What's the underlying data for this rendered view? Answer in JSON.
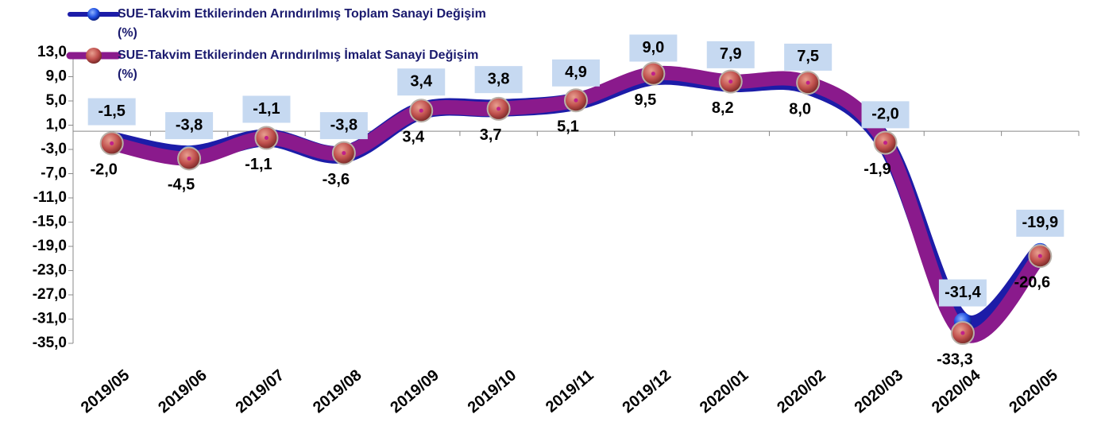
{
  "chart_data": {
    "type": "line",
    "categories": [
      "2019/05",
      "2019/06",
      "2019/07",
      "2019/08",
      "2019/09",
      "2019/10",
      "2019/11",
      "2019/12",
      "2020/01",
      "2020/02",
      "2020/03",
      "2020/04",
      "2020/05"
    ],
    "series": [
      {
        "name": "SUE-Takvim Etkilerinden Arındırılmış Toplam Sanayi Değişim (%)",
        "color": "#1c1ca8",
        "values": [
          -1.5,
          -3.8,
          -1.1,
          -3.8,
          3.4,
          3.8,
          4.9,
          9.0,
          7.9,
          7.5,
          -2.0,
          -31.4,
          -19.9
        ],
        "value_labels": [
          "-1,5",
          "-3,8",
          "-1,1",
          "-3,8",
          "3,4",
          "3,8",
          "4,9",
          "9,0",
          "7,9",
          "7,5",
          "-2,0",
          "-31,4",
          "-19,9"
        ]
      },
      {
        "name": "SUE-Takvim Etkilerinden Arındırılmış İmalat Sanayi Değişim (%)",
        "color": "#8a1a8c",
        "values": [
          -2.0,
          -4.5,
          -1.1,
          -3.6,
          3.4,
          3.7,
          5.1,
          9.5,
          8.2,
          8.0,
          -1.9,
          -33.3,
          -20.6
        ],
        "value_labels": [
          "-2,0",
          "-4,5",
          "-1,1",
          "-3,6",
          "3,4",
          "3,7",
          "5,1",
          "9,5",
          "8,2",
          "8,0",
          "-1,9",
          "-33,3",
          "-20,6"
        ]
      }
    ],
    "ylim": [
      -35,
      13
    ],
    "yticks": [
      {
        "value": 13,
        "label": "13,0"
      },
      {
        "value": 9,
        "label": "9,0"
      },
      {
        "value": 5,
        "label": "5,0"
      },
      {
        "value": 1,
        "label": "1,0"
      },
      {
        "value": -3,
        "label": "-3,0"
      },
      {
        "value": -7,
        "label": "-7,0"
      },
      {
        "value": -11,
        "label": "-11,0"
      },
      {
        "value": -15,
        "label": "-15,0"
      },
      {
        "value": -19,
        "label": "-19,0"
      },
      {
        "value": -23,
        "label": "-23,0"
      },
      {
        "value": -27,
        "label": "-27,0"
      },
      {
        "value": -31,
        "label": "-31,0"
      },
      {
        "value": -35,
        "label": "-35,0"
      }
    ],
    "legend": "top-left"
  }
}
